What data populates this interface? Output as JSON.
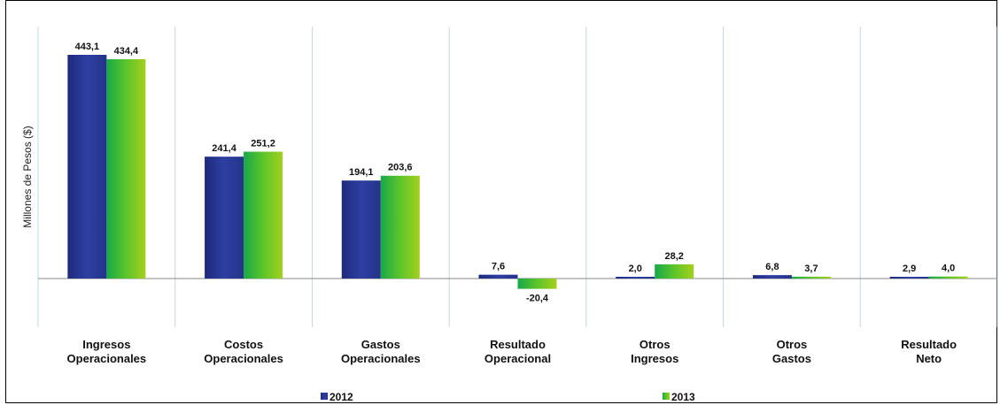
{
  "chart_data": {
    "type": "bar",
    "ylabel": "Millones de Pesos ($)",
    "categories": [
      [
        "Ingresos",
        "Operacionales"
      ],
      [
        "Costos",
        "Operacionales"
      ],
      [
        "Gastos",
        "Operacionales"
      ],
      [
        "Resultado",
        "Operacional"
      ],
      [
        "Otros",
        "Ingresos"
      ],
      [
        "Otros",
        "Gastos"
      ],
      [
        "Resultado",
        "Neto"
      ]
    ],
    "series": [
      {
        "name": "2012",
        "values": [
          443.1,
          241.4,
          194.1,
          7.6,
          2.0,
          6.8,
          2.9
        ],
        "labels": [
          "443,1",
          "241,4",
          "194,1",
          "7,6",
          "2,0",
          "6,8",
          "2,9"
        ],
        "color": "#2b3a9a"
      },
      {
        "name": "2013",
        "values": [
          434.4,
          251.2,
          203.6,
          -20.4,
          28.2,
          3.7,
          4.0
        ],
        "labels": [
          "434,4",
          "251,2",
          "203,6",
          "-20,4",
          "28,2",
          "3,7",
          "4,0"
        ],
        "color": "#39b82f"
      }
    ],
    "grid": "vertical separators between categories",
    "legend": "bottom"
  }
}
